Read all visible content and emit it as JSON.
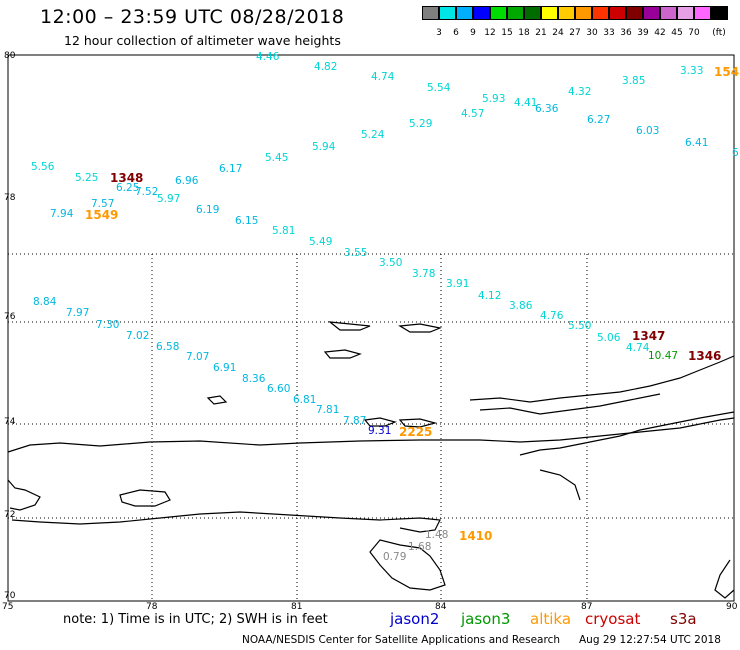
{
  "header": {
    "title": "12:00 – 23:59 UTC 08/28/2018",
    "subtitle": "12 hour collection of altimeter wave heights"
  },
  "colorbar": {
    "unit_label": "(ft)",
    "ticks": [
      "3",
      "6",
      "9",
      "12",
      "15",
      "18",
      "21",
      "24",
      "27",
      "30",
      "33",
      "36",
      "39",
      "42",
      "45",
      "70"
    ],
    "colors": [
      "#7f7f7f",
      "#00e5e5",
      "#00b0ff",
      "#0000ff",
      "#00dd00",
      "#00a800",
      "#006c00",
      "#ffff00",
      "#ffcc00",
      "#ff9900",
      "#ff3300",
      "#cc0000",
      "#800000",
      "#990099",
      "#cc66cc",
      "#e6a0e6",
      "#ff66ff",
      "#000000"
    ]
  },
  "axes": {
    "lat_labels": [
      "80",
      "78",
      "76",
      "74",
      "72",
      "70"
    ],
    "lon_labels": [
      "75",
      "78",
      "81",
      "84",
      "87",
      "90"
    ]
  },
  "footer": {
    "note": "note:  1) Time is in UTC;  2) SWH is in feet",
    "satellites": [
      {
        "name": "jason2",
        "color": "#0000cc"
      },
      {
        "name": "jason3",
        "color": "#009900"
      },
      {
        "name": "altika",
        "color": "#ff9900"
      },
      {
        "name": "cryosat",
        "color": "#cc0000"
      },
      {
        "name": "s3a",
        "color": "#800000"
      }
    ],
    "credit": "NOAA/NESDIS Center for Satellite Applications and Research",
    "timestamp": "Aug 29 12:27:54 UTC 2018"
  },
  "wave_points": [
    {
      "v": "4.46",
      "c": "#00d5d5"
    },
    {
      "v": "4.82",
      "c": "#00d5d5"
    },
    {
      "v": "4.74",
      "c": "#00d5d5"
    },
    {
      "v": "5.54",
      "c": "#00d5d5"
    },
    {
      "v": "5.93",
      "c": "#00d5d5"
    },
    {
      "v": "4.41",
      "c": "#00d5d5"
    },
    {
      "v": "4.32",
      "c": "#00d5d5"
    },
    {
      "v": "3.85",
      "c": "#00d5d5"
    },
    {
      "v": "3.33",
      "c": "#00d5d5"
    },
    {
      "v": "4.57",
      "c": "#00d5d5"
    },
    {
      "v": "6.36",
      "c": "#00b8e0"
    },
    {
      "v": "5.29",
      "c": "#00d5d5"
    },
    {
      "v": "6.27",
      "c": "#00b8e0"
    },
    {
      "v": "5.24",
      "c": "#00d5d5"
    },
    {
      "v": "6.03",
      "c": "#00b8e0"
    },
    {
      "v": "5.94",
      "c": "#00d5d5"
    },
    {
      "v": "6.41",
      "c": "#00b8e0"
    },
    {
      "v": "6",
      "c": "#00b8e0"
    },
    {
      "v": "5.45",
      "c": "#00d5d5"
    },
    {
      "v": "6.17",
      "c": "#00b8e0"
    },
    {
      "v": "5.56",
      "c": "#00d5d5"
    },
    {
      "v": "5.25",
      "c": "#00d5d5"
    },
    {
      "v": "6.25",
      "c": "#00b8e0"
    },
    {
      "v": "7.52",
      "c": "#00b8e0"
    },
    {
      "v": "6.96",
      "c": "#00b8e0"
    },
    {
      "v": "5.97",
      "c": "#00d5d5"
    },
    {
      "v": "7.57",
      "c": "#00b8e0"
    },
    {
      "v": "6.19",
      "c": "#00b8e0"
    },
    {
      "v": "7.94",
      "c": "#00b8e0"
    },
    {
      "v": "6.15",
      "c": "#00b8e0"
    },
    {
      "v": "5.81",
      "c": "#00d5d5"
    },
    {
      "v": "5.49",
      "c": "#00d5d5"
    },
    {
      "v": "3.55",
      "c": "#00d5d5"
    },
    {
      "v": "3.50",
      "c": "#00d5d5"
    },
    {
      "v": "3.78",
      "c": "#00d5d5"
    },
    {
      "v": "3.91",
      "c": "#00d5d5"
    },
    {
      "v": "4.12",
      "c": "#00d5d5"
    },
    {
      "v": "3.86",
      "c": "#00d5d5"
    },
    {
      "v": "4.76",
      "c": "#00d5d5"
    },
    {
      "v": "5.50",
      "c": "#00d5d5"
    },
    {
      "v": "5.06",
      "c": "#00d5d5"
    },
    {
      "v": "4.74",
      "c": "#00d5d5"
    },
    {
      "v": "8.84",
      "c": "#00b8e0"
    },
    {
      "v": "7.97",
      "c": "#00b8e0"
    },
    {
      "v": "7.30",
      "c": "#00b8e0"
    },
    {
      "v": "7.02",
      "c": "#00b8e0"
    },
    {
      "v": "6.58",
      "c": "#00b8e0"
    },
    {
      "v": "7.07",
      "c": "#00b8e0"
    },
    {
      "v": "6.91",
      "c": "#00b8e0"
    },
    {
      "v": "8.36",
      "c": "#00b8e0"
    },
    {
      "v": "6.60",
      "c": "#00b8e0"
    },
    {
      "v": "6.81",
      "c": "#00b8e0"
    },
    {
      "v": "7.81",
      "c": "#00b8e0"
    },
    {
      "v": "7.87",
      "c": "#00b8e0"
    },
    {
      "v": "9.31",
      "c": "#0000cc"
    },
    {
      "v": "1.48",
      "c": "#888888"
    },
    {
      "v": "1.68",
      "c": "#888888"
    },
    {
      "v": "0.79",
      "c": "#888888"
    },
    {
      "v": "10.47",
      "c": "#009900"
    }
  ],
  "time_labels": [
    {
      "v": "1348",
      "c": "#800000"
    },
    {
      "v": "1549",
      "c": "#ff9900"
    },
    {
      "v": "154",
      "c": "#ff9900"
    },
    {
      "v": "1347",
      "c": "#800000"
    },
    {
      "v": "1346",
      "c": "#800000"
    },
    {
      "v": "2225",
      "c": "#ff9900"
    },
    {
      "v": "1410",
      "c": "#ff9900"
    }
  ]
}
